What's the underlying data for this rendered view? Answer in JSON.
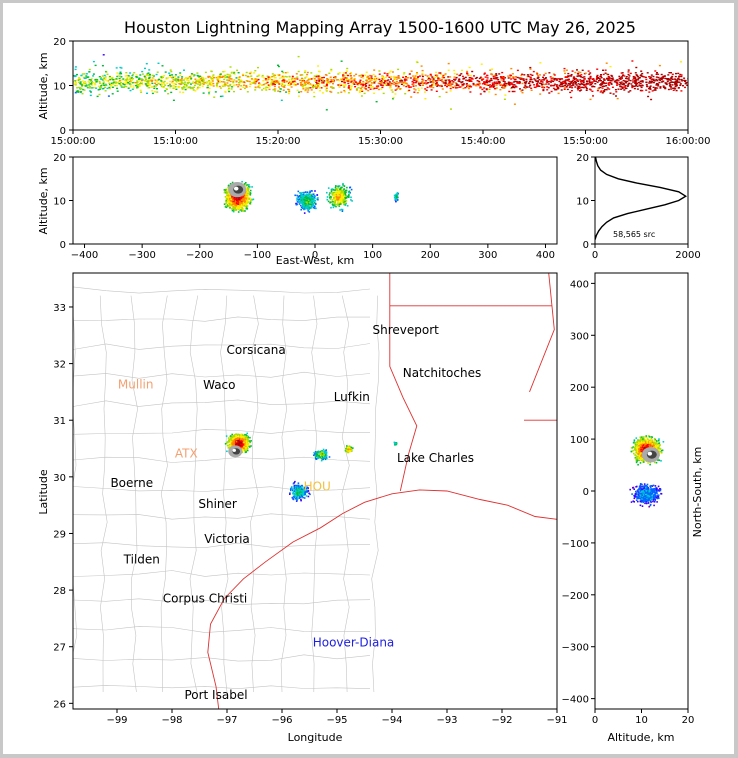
{
  "title": "Houston Lightning Mapping Array 1500-1600 UTC May 26, 2025",
  "colors": {
    "coast": "#e03030",
    "counties": "#bbbbbb",
    "axis": "#000000"
  },
  "chart_data": [
    {
      "type": "heatmap",
      "panel": "altitude-vs-time",
      "ylabel": "Altitude, km",
      "ylim": [
        0,
        20
      ],
      "yticks": [
        "0",
        "10",
        "20"
      ],
      "xticks": [
        "15:00:00",
        "15:10:00",
        "15:20:00",
        "15:30:00",
        "15:40:00",
        "15:50:00",
        "16:00:00"
      ]
    },
    {
      "type": "heatmap",
      "panel": "altitude-vs-east-west",
      "xlabel": "East-West, km",
      "ylabel": "Altitude, km",
      "xlim": [
        -420,
        420
      ],
      "ylim": [
        0,
        20
      ],
      "xticks": [
        "−400",
        "−300",
        "−200",
        "−100",
        "0",
        "100",
        "200",
        "300",
        "400"
      ],
      "yticks": [
        "0",
        "10",
        "20"
      ]
    },
    {
      "type": "line",
      "panel": "altitude-histogram",
      "annotation": "58,565 src",
      "xlim": [
        0,
        2000
      ],
      "ylim": [
        0,
        20
      ],
      "xticks": [
        "0",
        "2000"
      ],
      "yticks": [
        "0",
        "10",
        "20"
      ],
      "x": [
        0,
        30,
        80,
        150,
        250,
        400,
        700,
        1100,
        1500,
        1800,
        1950,
        1800,
        1400,
        900,
        500,
        250,
        120,
        60,
        30,
        10
      ],
      "y": [
        1,
        2,
        3,
        4,
        5,
        6,
        7,
        8,
        9,
        10,
        11,
        12,
        13,
        14,
        15,
        16,
        17,
        18,
        19,
        20
      ]
    },
    {
      "type": "scatter",
      "panel": "plan-view-map",
      "xlabel": "Longitude",
      "ylabel": "Latitude",
      "xlim": [
        -99.8,
        -91.0
      ],
      "ylim": [
        25.9,
        33.6
      ],
      "xticks": [
        "−99",
        "−98",
        "−97",
        "−96",
        "−95",
        "−94",
        "−93",
        "−92",
        "−91"
      ],
      "yticks": [
        "26",
        "27",
        "28",
        "29",
        "30",
        "31",
        "32",
        "33"
      ],
      "cities": [
        {
          "name": "Shreveport",
          "lon": -93.75,
          "lat": 32.52,
          "color": "#000000"
        },
        {
          "name": "Corsicana",
          "lon": -96.47,
          "lat": 32.17,
          "color": "#000000"
        },
        {
          "name": "Natchitoches",
          "lon": -93.09,
          "lat": 31.76,
          "color": "#000000"
        },
        {
          "name": "Mullin",
          "lon": -98.66,
          "lat": 31.56,
          "color": "#f4a070"
        },
        {
          "name": "Waco",
          "lon": -97.14,
          "lat": 31.55,
          "color": "#000000"
        },
        {
          "name": "Lufkin",
          "lon": -94.73,
          "lat": 31.34,
          "color": "#000000"
        },
        {
          "name": "ATX",
          "lon": -97.74,
          "lat": 30.34,
          "color": "#f4a070"
        },
        {
          "name": "Lake Charles",
          "lon": -93.21,
          "lat": 30.26,
          "color": "#000000"
        },
        {
          "name": "Boerne",
          "lon": -98.73,
          "lat": 29.82,
          "color": "#000000"
        },
        {
          "name": "HOU",
          "lon": -95.36,
          "lat": 29.76,
          "color": "#f4c040"
        },
        {
          "name": "Shiner",
          "lon": -97.17,
          "lat": 29.45,
          "color": "#000000"
        },
        {
          "name": "Victoria",
          "lon": -97.0,
          "lat": 28.83,
          "color": "#000000"
        },
        {
          "name": "Tilden",
          "lon": -98.55,
          "lat": 28.47,
          "color": "#000000"
        },
        {
          "name": "Corpus Christi",
          "lon": -97.4,
          "lat": 27.78,
          "color": "#000000"
        },
        {
          "name": "Hoover-Diana",
          "lon": -94.7,
          "lat": 27.0,
          "color": "#2020e0"
        },
        {
          "name": "Port Isabel",
          "lon": -97.2,
          "lat": 26.08,
          "color": "#000000"
        }
      ]
    },
    {
      "type": "heatmap",
      "panel": "north-south-vs-altitude",
      "xlabel": "Altitude, km",
      "ylabel": "North-South, km",
      "xlim": [
        0,
        20
      ],
      "ylim": [
        -420,
        420
      ],
      "xticks": [
        "0",
        "10",
        "20"
      ],
      "yticks": [
        "−400",
        "−300",
        "−200",
        "−100",
        "0",
        "100",
        "200",
        "300",
        "400"
      ]
    }
  ]
}
